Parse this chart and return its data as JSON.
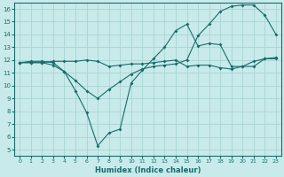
{
  "xlabel": "Humidex (Indice chaleur)",
  "x": [
    0,
    1,
    2,
    3,
    4,
    5,
    6,
    7,
    8,
    9,
    10,
    11,
    12,
    13,
    14,
    15,
    16,
    17,
    18,
    19,
    20,
    21,
    22,
    23
  ],
  "line_dip": [
    11.8,
    11.9,
    11.9,
    11.8,
    11.1,
    9.6,
    7.9,
    5.3,
    6.3,
    6.6,
    10.2,
    11.2,
    12.1,
    13.0,
    14.3,
    14.8,
    13.1,
    13.3,
    13.2,
    11.5,
    11.5,
    11.5,
    12.1,
    12.1
  ],
  "line_rise": [
    11.8,
    11.8,
    11.8,
    11.6,
    11.1,
    10.4,
    9.6,
    9.0,
    9.7,
    10.3,
    10.9,
    11.3,
    11.5,
    11.6,
    11.7,
    12.0,
    13.9,
    14.8,
    15.8,
    16.2,
    16.3,
    16.3,
    15.5,
    14.0
  ],
  "line_flat": [
    11.8,
    11.8,
    11.8,
    11.9,
    11.9,
    11.9,
    12.0,
    11.9,
    11.5,
    11.6,
    11.7,
    11.7,
    11.8,
    11.9,
    12.0,
    11.5,
    11.6,
    11.6,
    11.4,
    11.3,
    11.5,
    11.9,
    12.1,
    12.2
  ],
  "color": "#1a6b6b",
  "bg_color": "#c8eaea",
  "grid_color": "#aad4d4",
  "ylim": [
    5,
    16
  ],
  "xlim": [
    0,
    23
  ]
}
